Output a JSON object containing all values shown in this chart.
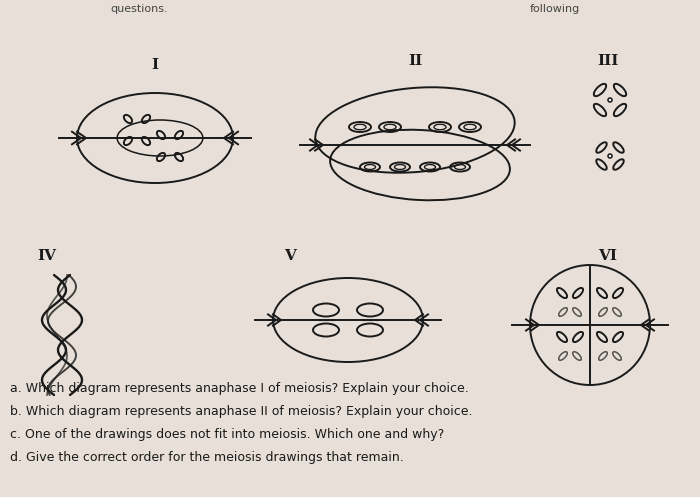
{
  "bg_color": "#e8e0d8",
  "text_color": "#1a1a1a",
  "line_color": "#1a1a1a",
  "questions": [
    "a. Which diagram represents anaphase I of meiosis? Explain your choice.",
    "b. Which diagram represents anaphase II of meiosis? Explain your choice.",
    "c. One of the drawings does not fit into meiosis. Which one and why?",
    "d. Give the correct order for the meiosis drawings that remain."
  ],
  "top_left": "questions.",
  "top_right": "following"
}
